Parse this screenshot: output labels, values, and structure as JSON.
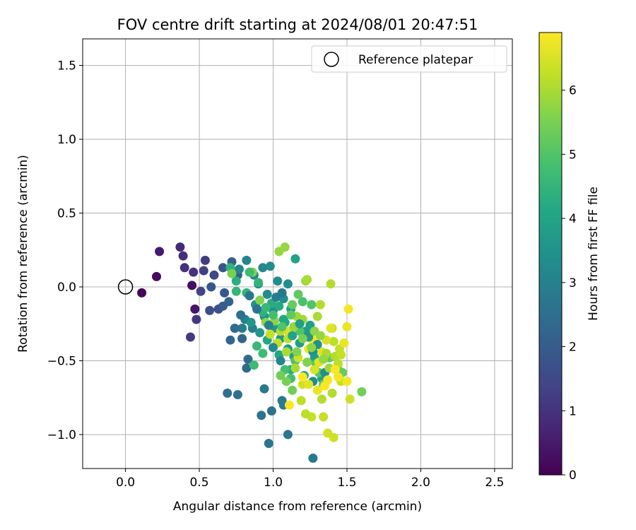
{
  "chart_data": {
    "type": "scatter",
    "title": "FOV centre drift starting at 2024/08/01 20:47:51",
    "xlabel": "Angular distance from reference (arcmin)",
    "ylabel": "Rotation from reference (arcmin)",
    "xlim": [
      -0.29,
      2.62
    ],
    "ylim": [
      -1.23,
      1.68
    ],
    "xticks": [
      0.0,
      0.5,
      1.0,
      1.5,
      2.0,
      2.5
    ],
    "xtick_labels": [
      "0.0",
      "0.5",
      "1.0",
      "1.5",
      "2.0",
      "2.5"
    ],
    "yticks": [
      -1.0,
      -0.5,
      0.0,
      0.5,
      1.0,
      1.5
    ],
    "ytick_labels": [
      "−1.0",
      "−0.5",
      "0.0",
      "0.5",
      "1.0",
      "1.5"
    ],
    "grid": true,
    "legend": {
      "placement": "upper-right",
      "entries": [
        "Reference platepar"
      ]
    },
    "reference_point": {
      "x": 0.0,
      "y": 0.0,
      "marker": "open-circle"
    },
    "colorbar": {
      "label": "Hours from first FF file",
      "colormap": "viridis",
      "range": [
        0,
        6.9
      ],
      "ticks": [
        0,
        1,
        2,
        3,
        4,
        5,
        6
      ],
      "tick_labels": [
        "0",
        "1",
        "2",
        "3",
        "4",
        "5",
        "6"
      ]
    },
    "points": [
      [
        0.11,
        -0.04,
        0.1
      ],
      [
        0.21,
        0.07,
        0.2
      ],
      [
        0.45,
        0.01,
        0.3
      ],
      [
        0.47,
        -0.15,
        0.4
      ],
      [
        0.23,
        0.24,
        0.5
      ],
      [
        0.37,
        0.27,
        0.8
      ],
      [
        0.39,
        0.21,
        0.9
      ],
      [
        0.4,
        0.13,
        1.0
      ],
      [
        0.46,
        0.1,
        1.0
      ],
      [
        0.48,
        -0.22,
        1.1
      ],
      [
        0.44,
        -0.34,
        1.2
      ],
      [
        0.54,
        0.18,
        1.2
      ],
      [
        0.53,
        0.11,
        1.3
      ],
      [
        0.51,
        -0.03,
        1.4
      ],
      [
        0.6,
        0.08,
        1.5
      ],
      [
        0.57,
        -0.16,
        1.6
      ],
      [
        0.63,
        -0.15,
        1.7
      ],
      [
        0.66,
        0.13,
        1.8
      ],
      [
        0.58,
        0.0,
        1.9
      ],
      [
        0.67,
        -0.04,
        1.9
      ],
      [
        0.66,
        -0.13,
        2.0
      ],
      [
        0.72,
        0.17,
        2.1
      ],
      [
        0.76,
        0.08,
        2.1
      ],
      [
        0.7,
        -0.1,
        2.2
      ],
      [
        0.71,
        -0.36,
        2.3
      ],
      [
        0.79,
        -0.35,
        2.3
      ],
      [
        0.83,
        -0.49,
        2.4
      ],
      [
        0.82,
        -0.55,
        2.4
      ],
      [
        0.69,
        -0.72,
        2.5
      ],
      [
        0.76,
        -0.73,
        2.5
      ],
      [
        0.92,
        -0.87,
        2.6
      ],
      [
        0.99,
        -0.84,
        2.6
      ],
      [
        0.97,
        -1.06,
        2.7
      ],
      [
        1.1,
        -1.0,
        2.7
      ],
      [
        1.27,
        -1.16,
        2.8
      ],
      [
        0.94,
        -0.69,
        2.8
      ],
      [
        1.06,
        -0.77,
        2.8
      ],
      [
        1.07,
        -0.8,
        2.9
      ],
      [
        0.79,
        -0.28,
        2.9
      ],
      [
        0.81,
        -0.22,
        3.0
      ],
      [
        0.86,
        -0.28,
        3.0
      ],
      [
        0.77,
        0.12,
        3.1
      ],
      [
        0.82,
        0.18,
        3.1
      ],
      [
        0.87,
        0.08,
        3.2
      ],
      [
        0.93,
        0.13,
        3.2
      ],
      [
        0.9,
        0.02,
        3.2
      ],
      [
        0.96,
        -0.05,
        3.3
      ],
      [
        0.98,
        0.14,
        3.3
      ],
      [
        1.03,
        0.04,
        3.3
      ],
      [
        1.1,
        0.02,
        3.4
      ],
      [
        1.07,
        -0.08,
        3.4
      ],
      [
        1.0,
        -0.16,
        3.4
      ],
      [
        0.94,
        -0.2,
        3.5
      ],
      [
        0.88,
        -0.12,
        3.5
      ],
      [
        0.85,
        -0.24,
        3.6
      ],
      [
        0.91,
        -0.31,
        3.6
      ],
      [
        1.01,
        -0.28,
        3.6
      ],
      [
        1.05,
        -0.35,
        3.7
      ],
      [
        1.1,
        -0.42,
        3.7
      ],
      [
        1.14,
        -0.47,
        3.8
      ],
      [
        1.18,
        -0.38,
        3.8
      ],
      [
        1.22,
        -0.3,
        3.8
      ],
      [
        1.25,
        -0.26,
        3.9
      ],
      [
        1.28,
        -0.48,
        3.9
      ],
      [
        1.33,
        -0.62,
        3.9
      ],
      [
        1.15,
        0.19,
        4.0
      ],
      [
        1.12,
        -0.15,
        4.0
      ],
      [
        1.07,
        -0.22,
        4.1
      ],
      [
        0.96,
        -0.36,
        4.1
      ],
      [
        1.04,
        -0.46,
        4.1
      ],
      [
        1.12,
        -0.56,
        4.2
      ],
      [
        1.21,
        -0.6,
        4.2
      ],
      [
        0.75,
        0.04,
        4.3
      ],
      [
        0.71,
        0.13,
        4.4
      ],
      [
        0.75,
        -0.03,
        4.5
      ],
      [
        0.82,
        -0.04,
        4.5
      ],
      [
        0.89,
        -0.4,
        4.6
      ],
      [
        0.93,
        -0.45,
        4.7
      ],
      [
        0.87,
        -0.53,
        4.7
      ],
      [
        1.08,
        -0.56,
        4.8
      ],
      [
        1.12,
        -0.62,
        4.8
      ],
      [
        1.15,
        -0.5,
        4.9
      ],
      [
        1.2,
        -0.1,
        4.9
      ],
      [
        1.26,
        -0.12,
        5.0
      ],
      [
        1.18,
        -0.3,
        5.0
      ],
      [
        1.29,
        -0.52,
        5.1
      ],
      [
        1.31,
        -0.58,
        5.1
      ],
      [
        1.38,
        -0.48,
        5.2
      ],
      [
        1.34,
        -0.66,
        5.2
      ],
      [
        1.44,
        -0.56,
        5.3
      ],
      [
        1.47,
        -0.58,
        5.3
      ],
      [
        1.6,
        -0.71,
        5.4
      ],
      [
        1.13,
        -0.7,
        5.4
      ],
      [
        0.72,
        0.09,
        5.5
      ],
      [
        0.86,
        0.1,
        5.6
      ],
      [
        0.91,
        -0.09,
        5.6
      ],
      [
        0.95,
        -0.24,
        5.7
      ],
      [
        1.01,
        -0.23,
        5.7
      ],
      [
        1.04,
        0.24,
        5.8
      ],
      [
        1.08,
        0.27,
        5.8
      ],
      [
        1.16,
        -0.2,
        5.9
      ],
      [
        1.22,
        0.04,
        5.9
      ],
      [
        1.23,
        0.05,
        6.0
      ],
      [
        1.3,
        -0.2,
        6.0
      ],
      [
        1.32,
        -0.12,
        6.1
      ],
      [
        1.39,
        0.02,
        6.1
      ],
      [
        1.4,
        -0.28,
        6.2
      ],
      [
        1.41,
        -0.37,
        6.2
      ],
      [
        1.45,
        -0.42,
        6.3
      ],
      [
        1.46,
        -0.64,
        6.3
      ],
      [
        1.52,
        -0.76,
        6.4
      ],
      [
        1.37,
        -0.99,
        6.4
      ],
      [
        1.41,
        -1.02,
        6.4
      ],
      [
        1.34,
        -0.88,
        6.3
      ],
      [
        1.26,
        -0.88,
        6.3
      ],
      [
        1.22,
        -0.86,
        6.2
      ],
      [
        1.19,
        -0.77,
        6.2
      ],
      [
        1.33,
        -0.76,
        6.1
      ],
      [
        1.4,
        -0.72,
        6.1
      ],
      [
        1.09,
        -0.44,
        6.0
      ],
      [
        1.15,
        -0.55,
        6.0
      ],
      [
        1.05,
        -0.3,
        6.1
      ],
      [
        1.1,
        -0.35,
        6.2
      ],
      [
        1.2,
        -0.66,
        6.4
      ],
      [
        1.28,
        -0.56,
        6.5
      ],
      [
        1.36,
        -0.36,
        6.5
      ],
      [
        1.39,
        -0.28,
        6.6
      ],
      [
        1.31,
        -0.51,
        6.6
      ],
      [
        1.48,
        -0.38,
        6.7
      ],
      [
        1.5,
        -0.27,
        6.7
      ],
      [
        1.51,
        -0.15,
        6.8
      ],
      [
        1.5,
        -0.64,
        6.8
      ],
      [
        1.44,
        -0.61,
        6.8
      ],
      [
        1.35,
        -0.67,
        6.9
      ],
      [
        1.2,
        -0.61,
        6.9
      ],
      [
        1.11,
        -0.8,
        6.9
      ],
      [
        1.27,
        -0.36,
        6.8
      ],
      [
        1.24,
        -0.42,
        6.7
      ],
      [
        1.33,
        -0.44,
        6.6
      ],
      [
        1.1,
        -0.3,
        6.5
      ],
      [
        1.17,
        -0.48,
        6.4
      ],
      [
        0.98,
        -0.32,
        6.3
      ],
      [
        1.03,
        -0.38,
        6.2
      ],
      [
        1.14,
        -0.27,
        5.8
      ],
      [
        1.2,
        -0.22,
        5.9
      ],
      [
        1.13,
        -0.12,
        5.3
      ],
      [
        1.17,
        -0.05,
        5.2
      ],
      [
        0.93,
        -0.17,
        4.4
      ],
      [
        0.99,
        -0.11,
        4.3
      ],
      [
        1.04,
        -0.13,
        4.2
      ],
      [
        1.08,
        -0.24,
        4.1
      ],
      [
        1.13,
        -0.33,
        4.0
      ],
      [
        1.18,
        -0.25,
        3.9
      ],
      [
        1.24,
        -0.34,
        3.7
      ],
      [
        1.27,
        -0.44,
        3.6
      ],
      [
        1.3,
        -0.39,
        3.5
      ],
      [
        1.35,
        -0.58,
        3.4
      ],
      [
        1.27,
        -0.64,
        3.3
      ],
      [
        1.0,
        -0.41,
        3.2
      ],
      [
        1.05,
        -0.5,
        3.1
      ],
      [
        0.97,
        -0.26,
        3.0
      ],
      [
        1.02,
        -0.07,
        2.9
      ],
      [
        1.06,
        -0.04,
        2.8
      ],
      [
        0.84,
        -0.06,
        2.7
      ],
      [
        0.89,
        -0.15,
        2.6
      ],
      [
        0.78,
        -0.19,
        2.5
      ],
      [
        0.74,
        -0.28,
        2.4
      ],
      [
        1.05,
        -0.6,
        5.4
      ],
      [
        1.09,
        -0.64,
        5.5
      ],
      [
        1.16,
        -0.44,
        5.6
      ],
      [
        1.23,
        -0.51,
        5.6
      ],
      [
        1.28,
        -0.3,
        5.7
      ],
      [
        1.32,
        -0.33,
        5.8
      ],
      [
        1.36,
        -0.45,
        6.0
      ],
      [
        1.42,
        -0.47,
        6.1
      ],
      [
        1.44,
        -0.52,
        6.2
      ],
      [
        1.46,
        -0.46,
        6.3
      ],
      [
        1.38,
        -0.55,
        5.9
      ],
      [
        1.34,
        -0.49,
        5.8
      ],
      [
        1.26,
        -0.41,
        5.7
      ],
      [
        1.2,
        -0.35,
        5.5
      ],
      [
        1.12,
        -0.19,
        5.2
      ],
      [
        1.06,
        -0.27,
        5.0
      ],
      [
        1.0,
        -0.19,
        4.8
      ],
      [
        0.95,
        -0.14,
        4.6
      ],
      [
        0.9,
        0.03,
        4.5
      ],
      [
        0.84,
        0.1,
        4.7
      ],
      [
        1.24,
        -0.66,
        6.6
      ],
      [
        1.3,
        -0.7,
        6.7
      ],
      [
        1.37,
        -0.63,
        6.8
      ],
      [
        1.42,
        -0.56,
        6.9
      ]
    ]
  }
}
